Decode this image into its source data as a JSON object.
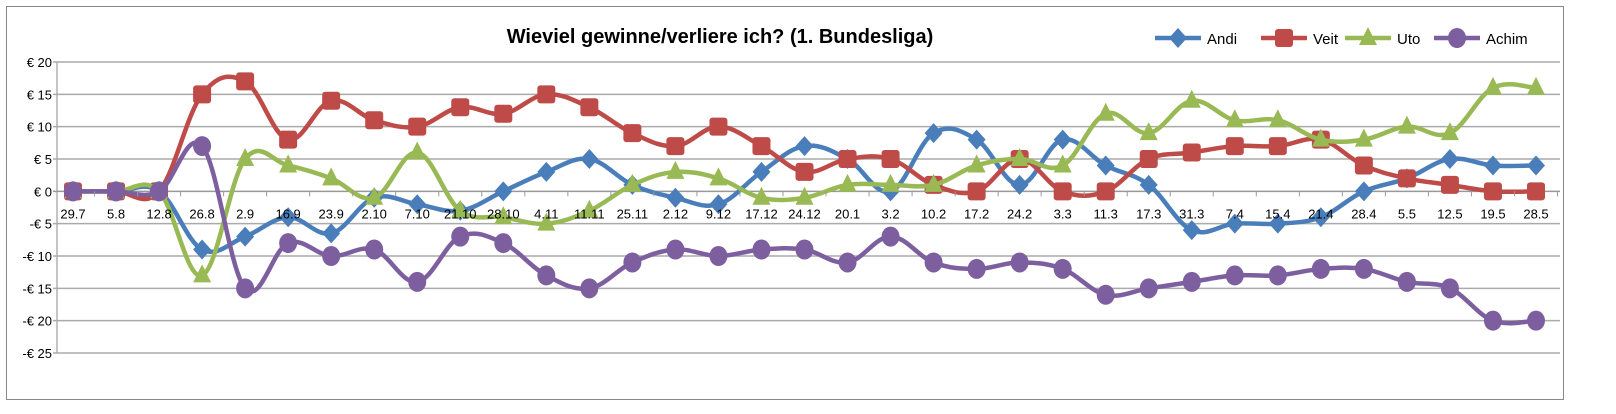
{
  "chart_data": {
    "type": "line",
    "title": "Wieviel gewinne/verliere ich? (1. Bundesliga)",
    "xlabel": "",
    "ylabel": "",
    "ylim": [
      -25,
      20
    ],
    "yticks": [
      20,
      15,
      10,
      5,
      0,
      -5,
      -10,
      -15,
      -20,
      -25
    ],
    "ytick_labels": [
      "€ 20",
      "€ 15",
      "€ 10",
      "€ 5",
      "€ 0",
      "-€ 5",
      "-€ 10",
      "-€ 15",
      "-€ 20",
      "-€ 25"
    ],
    "grid": true,
    "legend_position": "top-right",
    "categories": [
      "29.7",
      "5.8",
      "12.8",
      "26.8",
      "2.9",
      "16.9",
      "23.9",
      "2.10",
      "7.10",
      "21.10",
      "28.10",
      "4.11",
      "11.11",
      "25.11",
      "2.12",
      "9.12",
      "17.12",
      "24.12",
      "20.1",
      "3.2",
      "10.2",
      "17.2",
      "24.2",
      "3.3",
      "11.3",
      "17.3",
      "31.3",
      "7.4",
      "15.4",
      "21.4",
      "28.4",
      "5.5",
      "12.5",
      "19.5",
      "28.5"
    ],
    "series": [
      {
        "name": "Andi",
        "color": "#4a7ebb",
        "marker": "diamond",
        "values": [
          0,
          0,
          0,
          -9,
          -7,
          -4,
          -6.5,
          -1,
          -2,
          -3,
          0,
          3,
          5,
          1,
          -1,
          -2,
          3,
          7,
          5,
          0,
          9,
          8,
          1,
          8,
          4,
          1,
          -6,
          -5,
          -5,
          -4,
          0,
          2,
          5,
          4,
          4
        ]
      },
      {
        "name": "Veit",
        "color": "#be4b48",
        "marker": "square",
        "values": [
          0,
          0,
          0,
          15,
          17,
          8,
          14,
          11,
          10,
          13,
          12,
          15,
          13,
          9,
          7,
          10,
          7,
          3,
          5,
          5,
          1,
          0,
          5,
          0,
          0,
          5,
          6,
          7,
          7,
          8,
          4,
          2,
          1,
          0,
          0
        ]
      },
      {
        "name": "Uto",
        "color": "#98b954",
        "marker": "triangle",
        "values": [
          0,
          0,
          0,
          -13,
          5,
          4,
          2,
          -1,
          6,
          -3,
          -4,
          -5,
          -3,
          1,
          3,
          2,
          -1,
          -1,
          1,
          1,
          1,
          4,
          5,
          4,
          12,
          9,
          14,
          11,
          11,
          8,
          8,
          10,
          9,
          16,
          16
        ]
      },
      {
        "name": "Achim",
        "color": "#7d5fa0",
        "marker": "circle",
        "values": [
          0,
          0,
          0,
          7,
          -15,
          -8,
          -10,
          -9,
          -14,
          -7,
          -8,
          -13,
          -15,
          -11,
          -9,
          -10,
          -9,
          -9,
          -11,
          -7,
          -11,
          -12,
          -11,
          -12,
          -16,
          -15,
          -14,
          -13,
          -13,
          -12,
          -12,
          -14,
          -15,
          -20,
          -20
        ]
      }
    ]
  }
}
